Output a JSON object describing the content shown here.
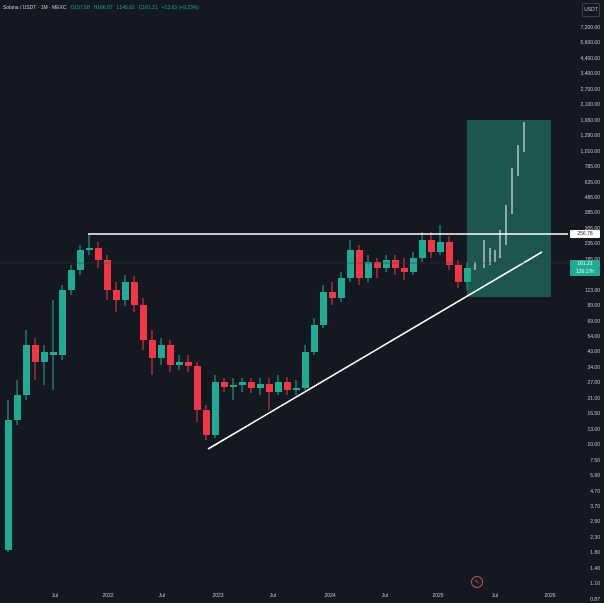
{
  "header": {
    "symbol": "Solana / USDT · 1M · MEXC",
    "open": "O157.58",
    "high": "H166.87",
    "low": "L145.62",
    "close": "C161.21",
    "change": "+13.63 (+9.23%)"
  },
  "currency_badge": "USDT",
  "price_axis": [
    "7,200.00",
    "5,600.00",
    "4,400.00",
    "3,400.00",
    "2,700.00",
    "2,100.00",
    "1,650.00",
    "1,290.00",
    "1,010.00",
    "785.00",
    "625.00",
    "485.00",
    "385.00",
    "305.00",
    "235.00",
    "185.00",
    "145.00",
    "113.00",
    "89.00",
    "69.00",
    "54.00",
    "43.00",
    "34.00",
    "27.00",
    "21.00",
    "16.50",
    "13.00",
    "10.00",
    "7.50",
    "5.90",
    "4.70",
    "3.70",
    "2.90",
    "2.30",
    "1.80",
    "1.40",
    "1.10",
    "0.87"
  ],
  "time_axis": [
    "Jul",
    "2022",
    "Jul",
    "2023",
    "Jul",
    "2024",
    "Jul",
    "2025",
    "Jul",
    "2026"
  ],
  "level_badge": "256.78",
  "current_price_badge": "161.21",
  "countdown_badge": "126:17h",
  "colors": {
    "background": "#141821",
    "up": "#22ab94",
    "down": "#f23645",
    "line": "#ffffff",
    "zone": "#1f6b5e"
  }
}
